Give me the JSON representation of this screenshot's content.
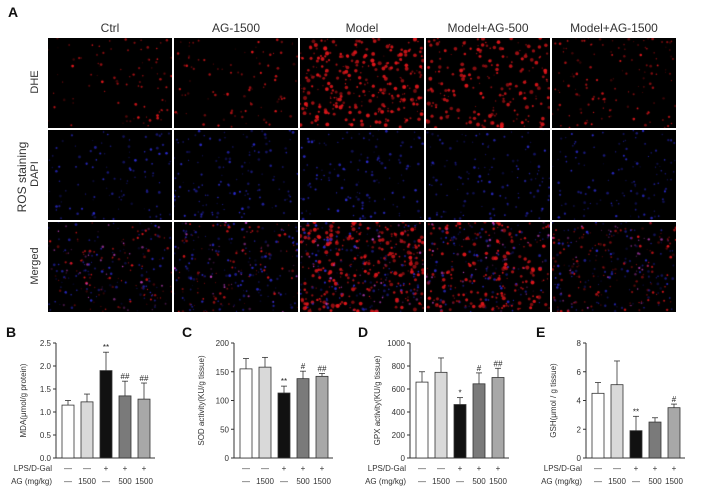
{
  "figure": {
    "panel_a": {
      "letter": "A",
      "section_label": "ROS staining",
      "columns": [
        "Ctrl",
        "AG-1500",
        "Model",
        "Model+AG-500",
        "Model+AG-1500"
      ],
      "rows": [
        "DHE",
        "DAPI",
        "Merged"
      ]
    },
    "conditions": {
      "lps_label": "LPS/D-Gal",
      "ag_label": "AG (mg/kg)",
      "lps": [
        "—",
        "—",
        "+",
        "+",
        "+"
      ],
      "ag": [
        "—",
        "1500",
        "—",
        "500",
        "1500"
      ]
    },
    "colors": {
      "bars": [
        "#ffffff",
        "#d9d9d9",
        "#111111",
        "#7a7a7a",
        "#a8a8a8"
      ],
      "dhe": "#e0161b",
      "dapi": "#2a2acb"
    }
  },
  "chart_data": [
    {
      "panel": "B",
      "type": "bar",
      "ylabel": "MDA(μmol/g protein)",
      "ylim": [
        0,
        2.5
      ],
      "yticks": [
        "0.0",
        "0.5",
        "1.0",
        "1.5",
        "2.0",
        "2.5"
      ],
      "ytick_values": [
        0,
        0.5,
        1.0,
        1.5,
        2.0,
        2.5
      ],
      "values": [
        1.15,
        1.22,
        1.9,
        1.35,
        1.28
      ],
      "errors": [
        0.1,
        0.17,
        0.4,
        0.32,
        0.35
      ],
      "annotations": [
        "",
        "",
        "**",
        "##",
        "##"
      ]
    },
    {
      "panel": "C",
      "type": "bar",
      "ylabel": "SOD activity(KU/g tissue)",
      "ylim": [
        0,
        200
      ],
      "yticks": [
        "0",
        "50",
        "100",
        "150",
        "200"
      ],
      "ytick_values": [
        0,
        50,
        100,
        150,
        200
      ],
      "values": [
        155,
        158,
        113,
        138,
        142
      ],
      "errors": [
        18,
        17,
        12,
        13,
        5
      ],
      "annotations": [
        "",
        "",
        "**",
        "#",
        "##"
      ]
    },
    {
      "panel": "D",
      "type": "bar",
      "ylabel": "GPX activity(KU/g tissue)",
      "ylim": [
        0,
        1000
      ],
      "yticks": [
        "0",
        "200",
        "400",
        "600",
        "800",
        "1000"
      ],
      "ytick_values": [
        0,
        200,
        400,
        600,
        800,
        1000
      ],
      "values": [
        660,
        745,
        465,
        645,
        700
      ],
      "errors": [
        90,
        125,
        60,
        95,
        80
      ],
      "annotations": [
        "",
        "",
        "*",
        "#",
        "##"
      ]
    },
    {
      "panel": "E",
      "type": "bar",
      "ylabel": "GSH(μmol / g tissue)",
      "ylim": [
        0,
        8
      ],
      "yticks": [
        "0",
        "2",
        "4",
        "6",
        "8"
      ],
      "ytick_values": [
        0,
        2,
        4,
        6,
        8
      ],
      "values": [
        4.5,
        5.1,
        1.9,
        2.5,
        3.5
      ],
      "errors": [
        0.75,
        1.65,
        1.0,
        0.3,
        0.25
      ],
      "annotations": [
        "",
        "",
        "**",
        "",
        "#"
      ]
    }
  ]
}
